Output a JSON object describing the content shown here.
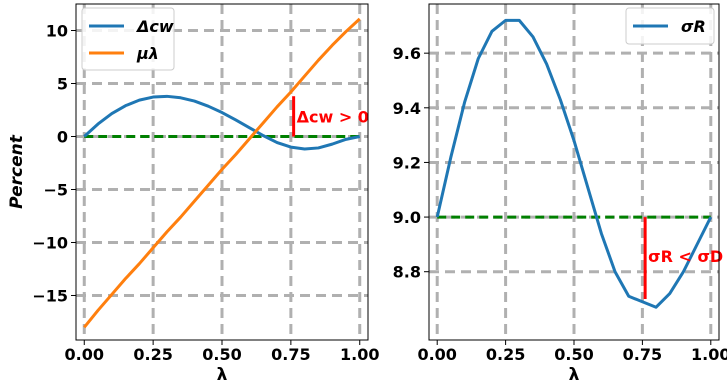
{
  "colors": {
    "series_blue": "#1f77b4",
    "series_orange": "#ff7f0e",
    "zero_line": "#008000",
    "annotation": "#ff0000",
    "grid": "#b0b0b0"
  },
  "chart_data": [
    {
      "type": "line",
      "xlabel": "λ",
      "ylabel": "Percent",
      "xlim": [
        -0.03,
        1.03
      ],
      "ylim": [
        -19.2,
        12.5
      ],
      "xticks": [
        0.0,
        0.25,
        0.5,
        0.75,
        1.0
      ],
      "xtick_labels": [
        "0.00",
        "0.25",
        "0.50",
        "0.75",
        "1.00"
      ],
      "yticks": [
        -15,
        -10,
        -5,
        0,
        5,
        10
      ],
      "ytick_labels": [
        "−15",
        "−10",
        "−5",
        "0",
        "5",
        "10"
      ],
      "grid": true,
      "legend_position": "top-left",
      "series": [
        {
          "name": "Δcw",
          "color": "#1f77b4",
          "x": [
            0.0,
            0.05,
            0.1,
            0.15,
            0.2,
            0.25,
            0.3,
            0.35,
            0.4,
            0.45,
            0.5,
            0.55,
            0.6,
            0.65,
            0.7,
            0.75,
            0.8,
            0.85,
            0.9,
            0.95,
            1.0
          ],
          "y": [
            0.0,
            1.18,
            2.16,
            2.91,
            3.43,
            3.72,
            3.79,
            3.65,
            3.34,
            2.86,
            2.26,
            1.56,
            0.82,
            0.08,
            -0.57,
            -1.0,
            -1.18,
            -1.08,
            -0.72,
            -0.27,
            0.0
          ]
        },
        {
          "name": "μλ",
          "color": "#ff7f0e",
          "x": [
            0.0,
            0.05,
            0.1,
            0.15,
            0.2,
            0.25,
            0.3,
            0.35,
            0.4,
            0.45,
            0.5,
            0.55,
            0.6,
            0.65,
            0.7,
            0.75,
            0.8,
            0.85,
            0.9,
            0.95,
            1.0
          ],
          "y": [
            -18.0,
            -16.4,
            -14.9,
            -13.4,
            -12.0,
            -10.5,
            -9.0,
            -7.6,
            -6.1,
            -4.6,
            -3.1,
            -1.7,
            -0.2,
            1.3,
            2.8,
            4.2,
            5.7,
            7.2,
            8.6,
            9.9,
            11.1
          ]
        }
      ],
      "reference_line": {
        "y": 0,
        "x_range": [
          0.0,
          1.0
        ],
        "color": "#008000"
      },
      "annotation": {
        "text": "Δcw > 0",
        "x": 0.76,
        "y_from": 0.0,
        "y_to": 3.8,
        "color": "#ff0000"
      }
    },
    {
      "type": "line",
      "xlabel": "λ",
      "ylabel": "",
      "xlim": [
        -0.03,
        1.03
      ],
      "ylim": [
        8.55,
        9.78
      ],
      "xticks": [
        0.0,
        0.25,
        0.5,
        0.75,
        1.0
      ],
      "xtick_labels": [
        "0.00",
        "0.25",
        "0.50",
        "0.75",
        "1.00"
      ],
      "yticks": [
        8.8,
        9.0,
        9.2,
        9.4,
        9.6
      ],
      "ytick_labels": [
        "8.8",
        "9.0",
        "9.2",
        "9.4",
        "9.6"
      ],
      "grid": true,
      "legend_position": "top-right",
      "series": [
        {
          "name": "σR",
          "color": "#1f77b4",
          "x": [
            0.0,
            0.05,
            0.1,
            0.15,
            0.2,
            0.25,
            0.3,
            0.35,
            0.4,
            0.45,
            0.5,
            0.55,
            0.6,
            0.65,
            0.7,
            0.75,
            0.8,
            0.85,
            0.9,
            0.95,
            1.0
          ],
          "y": [
            9.0,
            9.22,
            9.42,
            9.58,
            9.68,
            9.72,
            9.72,
            9.66,
            9.56,
            9.43,
            9.28,
            9.11,
            8.94,
            8.8,
            8.71,
            8.69,
            8.67,
            8.72,
            8.8,
            8.9,
            9.0
          ]
        }
      ],
      "reference_line": {
        "y": 9.0,
        "x_range": [
          0.0,
          1.0
        ],
        "color": "#008000"
      },
      "annotation": {
        "text": "σR < σD",
        "x": 0.76,
        "y_from": 9.0,
        "y_to": 8.7,
        "color": "#ff0000"
      }
    }
  ]
}
